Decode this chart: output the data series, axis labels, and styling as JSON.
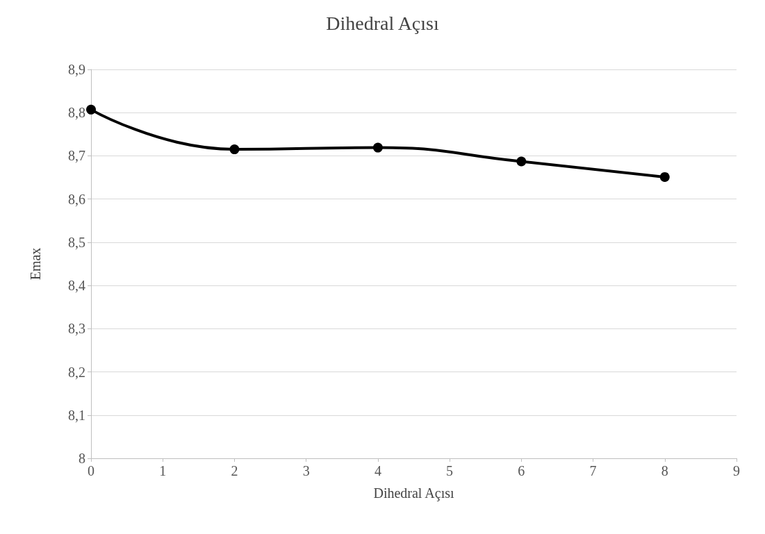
{
  "chart_data": {
    "type": "line",
    "title": "Dihedral Açısı",
    "xlabel": "Dihedral Açısı",
    "ylabel": "Emax",
    "x": [
      0,
      2,
      4,
      6,
      8
    ],
    "series": [
      {
        "color": "#000000",
        "values": [
          8.807,
          8.715,
          8.719,
          8.687,
          8.651
        ]
      }
    ],
    "xlim": [
      0,
      9
    ],
    "xticks": [
      0,
      1,
      2,
      3,
      4,
      5,
      6,
      7,
      8,
      9
    ],
    "ylim": [
      8,
      8.9
    ],
    "yticks": [
      8,
      {
        "value": 8.1,
        "label": "8,1"
      },
      {
        "value": 8.2,
        "label": "8,2"
      },
      {
        "value": 8.3,
        "label": "8,3"
      },
      {
        "value": 8.4,
        "label": "8,4"
      },
      {
        "value": 8.5,
        "label": "8,5"
      },
      {
        "value": 8.6,
        "label": "8,6"
      },
      {
        "value": 8.7,
        "label": "8,7"
      },
      {
        "value": 8.8,
        "label": "8,8"
      },
      {
        "value": 8.9,
        "label": "8,9"
      }
    ],
    "grid": "y",
    "marker": "circle",
    "line_style": "solid"
  }
}
